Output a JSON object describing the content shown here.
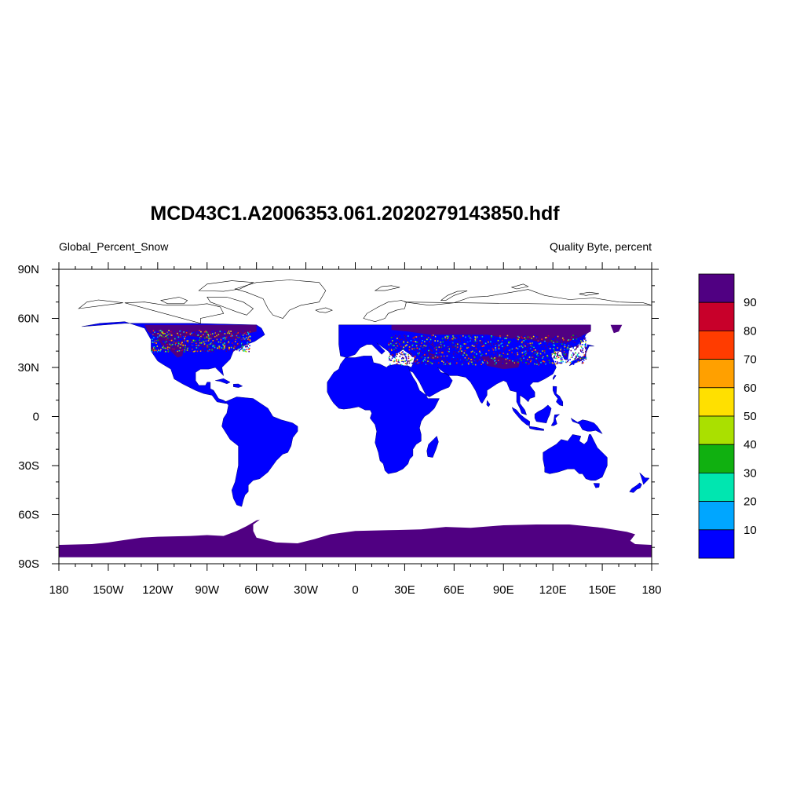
{
  "title": "MCD43C1.A2006353.061.2020279143850.hdf",
  "left_subtitle": "Global_Percent_Snow",
  "right_subtitle": "Quality Byte, percent",
  "map": {
    "projection": "cylindrical-equidistant",
    "lon_range": [
      -180,
      180
    ],
    "lat_range": [
      -90,
      90
    ],
    "land_color": "#0000ff",
    "snow_color": "#500082",
    "coastline_color": "#000000",
    "x_ticks": [
      {
        "value": -180,
        "label": "180"
      },
      {
        "value": -150,
        "label": "150W"
      },
      {
        "value": -120,
        "label": "120W"
      },
      {
        "value": -90,
        "label": "90W"
      },
      {
        "value": -60,
        "label": "60W"
      },
      {
        "value": -30,
        "label": "30W"
      },
      {
        "value": 0,
        "label": "0"
      },
      {
        "value": 30,
        "label": "30E"
      },
      {
        "value": 60,
        "label": "60E"
      },
      {
        "value": 90,
        "label": "90E"
      },
      {
        "value": 120,
        "label": "120E"
      },
      {
        "value": 150,
        "label": "150E"
      },
      {
        "value": 180,
        "label": "180"
      }
    ],
    "y_ticks": [
      {
        "value": 90,
        "label": "90N"
      },
      {
        "value": 60,
        "label": "60N"
      },
      {
        "value": 30,
        "label": "30N"
      },
      {
        "value": 0,
        "label": "0"
      },
      {
        "value": -30,
        "label": "30S"
      },
      {
        "value": -60,
        "label": "60S"
      },
      {
        "value": -90,
        "label": "90S"
      }
    ]
  },
  "legend": {
    "colors": [
      "#0000ff",
      "#00a6ff",
      "#00e6b0",
      "#10b010",
      "#aae000",
      "#ffe000",
      "#ffa000",
      "#ff3c00",
      "#c8002a",
      "#500082"
    ],
    "labels": [
      "10",
      "20",
      "30",
      "40",
      "50",
      "60",
      "70",
      "80",
      "90"
    ]
  }
}
